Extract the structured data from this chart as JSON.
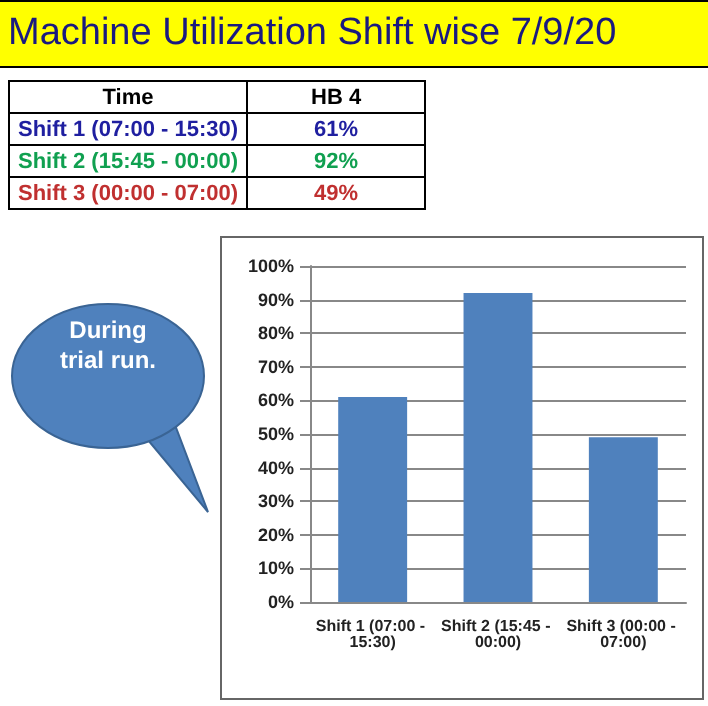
{
  "chart_data": {
    "type": "bar",
    "title": "Machine Utilization Shift wise  7/9/20",
    "categories": [
      "Shift 1 (07:00 - 15:30)",
      "Shift 2 (15:45 - 00:00)",
      "Shift 3 (00:00 - 07:00)"
    ],
    "series": [
      {
        "name": "HB 4",
        "color": "#4f81bd",
        "values": [
          61,
          92,
          49
        ]
      }
    ],
    "ylim": [
      0,
      100
    ],
    "yticks": [
      {
        "value": 0,
        "label": "0%"
      },
      {
        "value": 10,
        "label": "10%"
      },
      {
        "value": 20,
        "label": "20%"
      },
      {
        "value": 30,
        "label": "30%"
      },
      {
        "value": 40,
        "label": "40%"
      },
      {
        "value": 50,
        "label": "50%"
      },
      {
        "value": 60,
        "label": "60%"
      },
      {
        "value": 70,
        "label": "70%"
      },
      {
        "value": 80,
        "label": "80%"
      },
      {
        "value": 90,
        "label": "90%"
      },
      {
        "value": 100,
        "label": "100%"
      }
    ],
    "grid": "y",
    "legend": false,
    "annotations": [
      "Time",
      "61%",
      "92%",
      "49%",
      "During trial run."
    ]
  }
}
